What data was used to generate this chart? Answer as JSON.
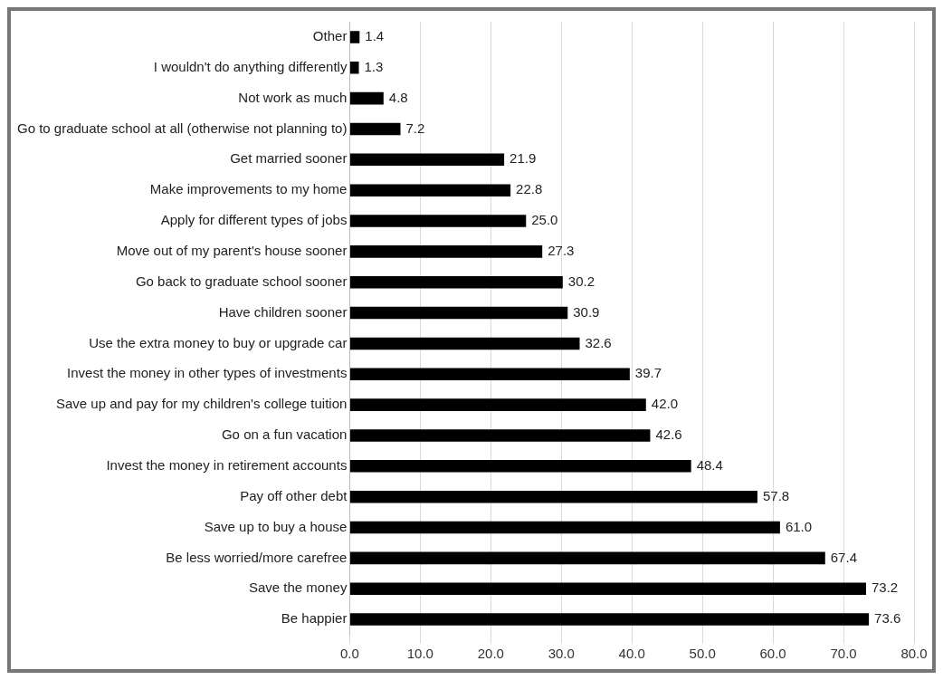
{
  "chart_data": {
    "type": "bar",
    "orientation": "horizontal",
    "categories": [
      "Other",
      "I wouldn't do anything differently",
      "Not work as much",
      "Go to graduate school at all (otherwise not planning to)",
      "Get married sooner",
      "Make improvements to my home",
      "Apply for different types of jobs",
      "Move out of my parent's house sooner",
      "Go back to graduate school sooner",
      "Have children sooner",
      "Use the extra money to buy or upgrade car",
      "Invest the money in other types of investments",
      "Save up and pay for my children's college tuition",
      "Go on a fun vacation",
      "Invest the money in retirement accounts",
      "Pay off other debt",
      "Save up to buy a house",
      "Be less worried/more carefree",
      "Save the money",
      "Be happier"
    ],
    "values": [
      1.4,
      1.3,
      4.8,
      7.2,
      21.9,
      22.8,
      25.0,
      27.3,
      30.2,
      30.9,
      32.6,
      39.7,
      42.0,
      42.6,
      48.4,
      57.8,
      61.0,
      67.4,
      73.2,
      73.6
    ],
    "value_labels": [
      "1.4",
      "1.3",
      "4.8",
      "7.2",
      "21.9",
      "22.8",
      "25.0",
      "27.3",
      "30.2",
      "30.9",
      "32.6",
      "39.7",
      "42.0",
      "42.6",
      "48.4",
      "57.8",
      "61.0",
      "67.4",
      "73.2",
      "73.6"
    ],
    "color": "#000000",
    "xlim": [
      0,
      80
    ],
    "xticks": [
      {
        "value": 0,
        "label": "0.0"
      },
      {
        "value": 10,
        "label": "10.0"
      },
      {
        "value": 20,
        "label": "20.0"
      },
      {
        "value": 30,
        "label": "30.0"
      },
      {
        "value": 40,
        "label": "40.0"
      },
      {
        "value": 50,
        "label": "50.0"
      },
      {
        "value": 60,
        "label": "60.0"
      },
      {
        "value": 70,
        "label": "70.0"
      },
      {
        "value": 80,
        "label": "80.0"
      }
    ],
    "grid": "x",
    "legend": false
  }
}
